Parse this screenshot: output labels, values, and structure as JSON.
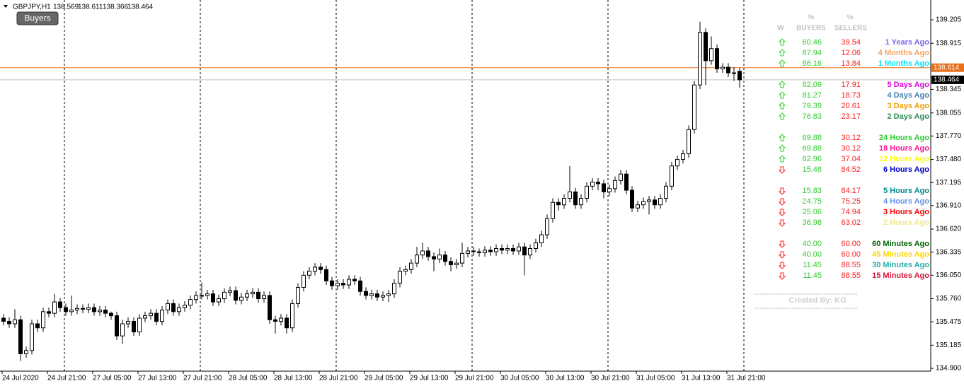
{
  "chart_data": {
    "type": "candlestick",
    "title": "GBPJPY,H1",
    "button": "Buyers",
    "up_color": "#ffffff",
    "down_color": "#000000",
    "ylim": [
      134.865,
      139.45
    ],
    "yticks": [
      139.205,
      138.915,
      138.345,
      138.055,
      {
        "value": 137.77,
        "label": "137.770"
      },
      {
        "value": 137.48,
        "label": "137.480"
      },
      137.195,
      {
        "value": 136.91,
        "label": "136.910"
      },
      {
        "value": 136.62,
        "label": "136.620"
      },
      136.335,
      {
        "value": 136.05,
        "label": "136.050"
      },
      {
        "value": 135.76,
        "label": "135.760"
      },
      135.475,
      135.185,
      {
        "value": 134.9,
        "label": "134.900"
      }
    ],
    "price_lines": [
      {
        "value": 138.614,
        "color": "#e8701a",
        "tag_color": "#e8701a"
      },
      {
        "value": 138.464,
        "color": "#c0c0c0",
        "tag_color": "#000000"
      }
    ],
    "categories": [
      "24 Jul 2020",
      null,
      null,
      null,
      null,
      null,
      null,
      null,
      "24 Jul 21:00",
      null,
      null,
      null,
      null,
      null,
      null,
      null,
      "27 Jul 05:00",
      null,
      null,
      null,
      null,
      null,
      null,
      null,
      "27 Jul 13:00",
      null,
      null,
      null,
      null,
      null,
      null,
      null,
      "27 Jul 21:00",
      null,
      null,
      null,
      null,
      null,
      null,
      null,
      "28 Jul 05:00",
      null,
      null,
      null,
      null,
      null,
      null,
      null,
      "28 Jul 13:00",
      null,
      null,
      null,
      null,
      null,
      null,
      null,
      "28 Jul 21:00",
      null,
      null,
      null,
      null,
      null,
      null,
      null,
      "29 Jul 05:00",
      null,
      null,
      null,
      null,
      null,
      null,
      null,
      "29 Jul 13:00",
      null,
      null,
      null,
      null,
      null,
      null,
      null,
      "29 Jul 21:00",
      null,
      null,
      null,
      null,
      null,
      null,
      null,
      "30 Jul 05:00",
      null,
      null,
      null,
      null,
      null,
      null,
      null,
      "30 Jul 13:00",
      null,
      null,
      null,
      null,
      null,
      null,
      null,
      "30 Jul 21:00",
      null,
      null,
      null,
      null,
      null,
      null,
      null,
      "31 Jul 05:00",
      null,
      null,
      null,
      null,
      null,
      null,
      null,
      "31 Jul 13:00",
      null,
      null,
      null,
      null,
      null,
      null,
      null,
      "31 Jul 21:00",
      null,
      null
    ],
    "open": [
      135.52,
      135.48,
      135.45,
      135.5,
      135.08,
      135.12,
      135.45,
      135.4,
      135.6,
      135.58,
      135.72,
      135.65,
      135.6,
      135.62,
      135.64,
      135.63,
      135.65,
      135.6,
      135.62,
      135.58,
      135.55,
      135.3,
      135.45,
      135.48,
      135.35,
      135.52,
      135.55,
      135.58,
      135.48,
      135.62,
      135.7,
      135.6,
      135.65,
      135.68,
      135.75,
      135.8,
      135.8,
      135.82,
      135.72,
      135.76,
      135.84,
      135.86,
      135.74,
      135.78,
      135.82,
      135.84,
      135.76,
      135.8,
      135.5,
      135.48,
      135.52,
      135.4,
      135.7,
      135.9,
      136.05,
      136.1,
      136.15,
      136.12,
      135.98,
      135.92,
      135.95,
      135.93,
      136.0,
      135.98,
      135.85,
      135.8,
      135.82,
      135.78,
      135.8,
      135.82,
      135.95,
      136.1,
      136.12,
      136.2,
      136.3,
      136.35,
      136.28,
      136.25,
      136.3,
      136.22,
      136.18,
      136.2,
      136.32,
      136.35,
      136.34,
      136.33,
      136.36,
      136.34,
      136.38,
      136.36,
      136.38,
      136.35,
      136.4,
      136.3,
      136.38,
      136.45,
      136.55,
      136.75,
      136.95,
      136.92,
      137.0,
      137.08,
      136.92,
      137.0,
      137.15,
      137.2,
      137.18,
      137.08,
      137.12,
      137.22,
      137.3,
      137.1,
      136.88,
      136.92,
      136.96,
      136.98,
      136.92,
      137.0,
      137.15,
      137.4,
      137.48,
      137.55,
      137.85,
      138.4,
      139.05,
      138.7,
      138.85,
      138.6,
      138.62,
      138.55,
      138.569
    ],
    "high": [
      135.57,
      135.53,
      135.63,
      135.55,
      135.17,
      135.5,
      135.5,
      135.65,
      135.65,
      135.82,
      135.77,
      135.7,
      135.8,
      135.69,
      135.69,
      135.7,
      135.7,
      135.67,
      135.67,
      135.6,
      135.6,
      135.5,
      135.53,
      135.53,
      135.57,
      135.6,
      135.63,
      135.63,
      135.67,
      135.75,
      135.75,
      135.7,
      135.73,
      135.8,
      135.85,
      135.96,
      135.87,
      135.87,
      135.81,
      135.89,
      135.91,
      135.91,
      135.83,
      135.87,
      135.89,
      135.89,
      135.85,
      135.85,
      135.55,
      135.57,
      135.57,
      135.75,
      135.95,
      136.1,
      136.15,
      136.2,
      136.2,
      136.17,
      136.03,
      136.0,
      136.0,
      136.05,
      136.05,
      136.03,
      135.9,
      135.87,
      135.87,
      135.85,
      135.87,
      136.0,
      136.15,
      136.17,
      136.25,
      136.4,
      136.45,
      136.4,
      136.33,
      136.38,
      136.35,
      136.27,
      136.25,
      136.45,
      136.4,
      136.4,
      136.38,
      136.41,
      136.41,
      136.43,
      136.43,
      136.43,
      136.43,
      136.45,
      136.45,
      136.43,
      136.5,
      136.6,
      136.8,
      137.0,
      137.0,
      137.05,
      137.4,
      137.13,
      137.05,
      137.2,
      137.25,
      137.25,
      137.23,
      137.17,
      137.27,
      137.35,
      137.35,
      137.15,
      136.97,
      137.01,
      137.03,
      137.03,
      137.05,
      137.2,
      137.45,
      137.53,
      137.6,
      137.9,
      138.45,
      139.18,
      139.1,
      139.0,
      138.9,
      138.67,
      138.67,
      138.62,
      138.611
    ],
    "low": [
      135.43,
      135.4,
      135.4,
      134.99,
      135.03,
      135.07,
      135.35,
      135.35,
      135.53,
      135.53,
      135.6,
      135.55,
      135.55,
      135.57,
      135.58,
      135.58,
      135.55,
      135.55,
      135.53,
      135.5,
      135.25,
      135.2,
      135.4,
      135.3,
      135.3,
      135.47,
      135.5,
      135.43,
      135.43,
      135.57,
      135.55,
      135.55,
      135.6,
      135.63,
      135.7,
      135.75,
      135.75,
      135.67,
      135.67,
      135.71,
      135.79,
      135.69,
      135.69,
      135.73,
      135.77,
      135.71,
      135.71,
      135.45,
      135.33,
      135.43,
      135.33,
      135.35,
      135.65,
      135.85,
      136.0,
      136.05,
      136.07,
      135.93,
      135.87,
      135.87,
      135.88,
      135.88,
      135.93,
      135.8,
      135.75,
      135.75,
      135.73,
      135.73,
      135.72,
      135.77,
      135.9,
      136.05,
      136.07,
      136.15,
      136.25,
      136.23,
      136.1,
      136.2,
      136.17,
      136.1,
      136.13,
      136.15,
      136.27,
      136.29,
      136.28,
      136.28,
      136.29,
      136.29,
      136.31,
      136.31,
      136.3,
      136.3,
      136.05,
      136.25,
      136.33,
      136.4,
      136.5,
      136.7,
      136.85,
      136.87,
      136.95,
      136.87,
      136.87,
      136.95,
      137.1,
      137.1,
      137.0,
      137.03,
      137.07,
      137.17,
      137.05,
      136.83,
      136.83,
      136.87,
      136.8,
      136.87,
      136.87,
      136.95,
      137.1,
      137.35,
      137.43,
      137.5,
      137.8,
      138.35,
      138.4,
      138.65,
      138.55,
      138.55,
      138.5,
      138.45,
      138.366
    ],
    "close": [
      135.48,
      135.45,
      135.5,
      135.08,
      135.12,
      135.45,
      135.4,
      135.6,
      135.58,
      135.72,
      135.65,
      135.6,
      135.62,
      135.64,
      135.63,
      135.65,
      135.6,
      135.62,
      135.58,
      135.55,
      135.3,
      135.45,
      135.48,
      135.35,
      135.52,
      135.55,
      135.58,
      135.48,
      135.62,
      135.7,
      135.6,
      135.65,
      135.68,
      135.75,
      135.8,
      135.8,
      135.82,
      135.72,
      135.76,
      135.84,
      135.86,
      135.74,
      135.78,
      135.82,
      135.84,
      135.76,
      135.8,
      135.5,
      135.48,
      135.52,
      135.4,
      135.7,
      135.9,
      136.05,
      136.1,
      136.15,
      136.12,
      135.98,
      135.92,
      135.95,
      135.93,
      136.0,
      135.98,
      135.85,
      135.8,
      135.82,
      135.78,
      135.8,
      135.82,
      135.95,
      136.1,
      136.12,
      136.2,
      136.3,
      136.35,
      136.28,
      136.25,
      136.3,
      136.22,
      136.18,
      136.2,
      136.32,
      136.35,
      136.34,
      136.33,
      136.36,
      136.34,
      136.38,
      136.36,
      136.38,
      136.35,
      136.4,
      136.3,
      136.38,
      136.45,
      136.55,
      136.75,
      136.95,
      136.92,
      137.0,
      137.08,
      136.92,
      137.0,
      137.15,
      137.2,
      137.18,
      137.08,
      137.12,
      137.22,
      137.3,
      137.1,
      136.88,
      136.92,
      136.96,
      136.98,
      136.92,
      137.0,
      137.15,
      137.4,
      137.48,
      137.55,
      137.85,
      138.4,
      139.05,
      138.7,
      138.85,
      138.6,
      138.62,
      138.55,
      138.55,
      138.464
    ]
  },
  "panel": {
    "header": {
      "w": "W",
      "pct_buyers": "%",
      "buyers": "BUYERS",
      "pct_sellers": "%",
      "sellers": "SELLERS"
    },
    "up_color": "#32cd32",
    "down_color": "#ff2020",
    "buyers_color": "#32cd32",
    "sellers_color": "#ff2020",
    "groups": [
      [
        {
          "direction": "up",
          "buyers": "60.46",
          "sellers": "39.54",
          "label": "1 Years Ago",
          "color": "#7b68ee"
        },
        {
          "direction": "up",
          "buyers": "87.94",
          "sellers": "12.06",
          "label": "4 Months Ago",
          "color": "#f4a460"
        },
        {
          "direction": "up",
          "buyers": "86.16",
          "sellers": "13.84",
          "label": "1 Months Ago",
          "color": "#00e5ff"
        }
      ],
      [
        {
          "direction": "up",
          "buyers": "82.09",
          "sellers": "17.91",
          "label": "5 Days Ago",
          "color": "#e000e0"
        },
        {
          "direction": "up",
          "buyers": "81.27",
          "sellers": "18.73",
          "label": "4 Days Ago",
          "color": "#4682b4"
        },
        {
          "direction": "up",
          "buyers": "79.39",
          "sellers": "20.61",
          "label": "3 Days Ago",
          "color": "#f0a000"
        },
        {
          "direction": "up",
          "buyers": "76.83",
          "sellers": "23.17",
          "label": "2 Days Ago",
          "color": "#2e8b57"
        }
      ],
      [
        {
          "direction": "up",
          "buyers": "69.88",
          "sellers": "30.12",
          "label": "24 Hours Ago",
          "color": "#32cd32"
        },
        {
          "direction": "up",
          "buyers": "69.88",
          "sellers": "30.12",
          "label": "18 Hours Ago",
          "color": "#ff1493"
        },
        {
          "direction": "up",
          "buyers": "62.96",
          "sellers": "37.04",
          "label": "12 Hours Ago",
          "color": "#ffff00"
        },
        {
          "direction": "down",
          "buyers": "15.48",
          "sellers": "84.52",
          "label": "6 Hours Ago",
          "color": "#0000cd"
        }
      ],
      [
        {
          "direction": "down",
          "buyers": "15.83",
          "sellers": "84.17",
          "label": "5 Hours Ago",
          "color": "#008b8b"
        },
        {
          "direction": "down",
          "buyers": "24.75",
          "sellers": "75.25",
          "label": "4 Hours Ago",
          "color": "#6495ed"
        },
        {
          "direction": "down",
          "buyers": "25.06",
          "sellers": "74.94",
          "label": "3 Hours Ago",
          "color": "#ff0000"
        },
        {
          "direction": "down",
          "buyers": "36.98",
          "sellers": "63.02",
          "label": "2 Hours Ago",
          "color": "#f0e68c"
        }
      ],
      [
        {
          "direction": "down",
          "buyers": "40.00",
          "sellers": "60.00",
          "label": "60 Minutes Ago",
          "color": "#006400"
        },
        {
          "direction": "down",
          "buyers": "40.00",
          "sellers": "60.00",
          "label": "45 Minutes Ago",
          "color": "#ffd700"
        },
        {
          "direction": "down",
          "buyers": "11.45",
          "sellers": "88.55",
          "label": "30 Minutes Ago",
          "color": "#20b2aa"
        },
        {
          "direction": "down",
          "buyers": "11.45",
          "sellers": "88.55",
          "label": "15 Minutes Ago",
          "color": "#dc143c"
        }
      ]
    ],
    "footer": "Created By: KG"
  }
}
